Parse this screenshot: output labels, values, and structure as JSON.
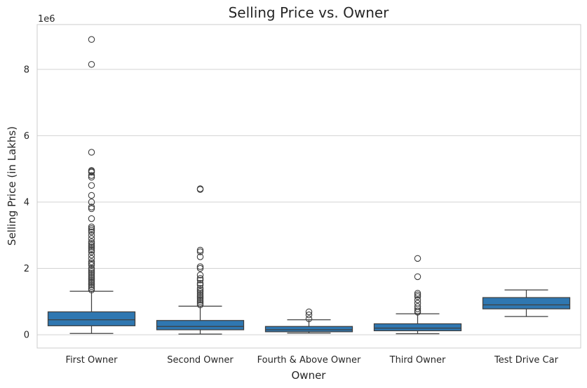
{
  "chart_data": {
    "type": "box",
    "title": "Selling Price vs. Owner",
    "xlabel": "Owner",
    "ylabel": "Selling Price (in Lakhs)",
    "y_scale_label": "1e6",
    "ylim": [
      -400000,
      9350000
    ],
    "yticks": [
      {
        "value": 0,
        "label": "0"
      },
      {
        "value": 2000000,
        "label": "2"
      },
      {
        "value": 4000000,
        "label": "4"
      },
      {
        "value": 6000000,
        "label": "6"
      },
      {
        "value": 8000000,
        "label": "8"
      }
    ],
    "grid": true,
    "colors": {
      "box_fill": "#2f77b1",
      "edge": "#3f3f3f",
      "grid": "#d3d3d3",
      "spine": "#cccccc"
    },
    "categories": [
      "First Owner",
      "Second Owner",
      "Fourth & Above Owner",
      "Third Owner",
      "Test Drive Car"
    ],
    "boxes": [
      {
        "category": "First Owner",
        "whisker_low": 40000,
        "q1": 270000,
        "median": 450000,
        "q3": 690000,
        "whisker_high": 1310000,
        "outliers": [
          8900000,
          8150000,
          5500000,
          4950000,
          4930000,
          4900000,
          4800000,
          4750000,
          4500000,
          4200000,
          4000000,
          3850000,
          3800000,
          3500000,
          3250000,
          3200000,
          3150000,
          3100000,
          3000000,
          2900000,
          2800000,
          2750000,
          2700000,
          2650000,
          2600000,
          2550000,
          2500000,
          2400000,
          2300000,
          2200000,
          2150000,
          2100000,
          2000000,
          1950000,
          1900000,
          1850000,
          1800000,
          1750000,
          1700000,
          1650000,
          1600000,
          1550000,
          1500000,
          1450000,
          1400000,
          1350000
        ]
      },
      {
        "category": "Second Owner",
        "whisker_low": 20000,
        "q1": 150000,
        "median": 250000,
        "q3": 430000,
        "whisker_high": 860000,
        "outliers": [
          4400000,
          4380000,
          2550000,
          2500000,
          2350000,
          2050000,
          2000000,
          1800000,
          1700000,
          1650000,
          1550000,
          1500000,
          1400000,
          1350000,
          1300000,
          1250000,
          1200000,
          1150000,
          1100000,
          1050000,
          1000000,
          950000,
          900000
        ]
      },
      {
        "category": "Fourth & Above Owner",
        "whisker_low": 50000,
        "q1": 90000,
        "median": 150000,
        "q3": 250000,
        "whisker_high": 450000,
        "outliers": [
          690000,
          600000,
          480000
        ]
      },
      {
        "category": "Third Owner",
        "whisker_low": 30000,
        "q1": 120000,
        "median": 200000,
        "q3": 330000,
        "whisker_high": 630000,
        "outliers": [
          2300000,
          1750000,
          1250000,
          1200000,
          1150000,
          1050000,
          950000,
          850000,
          780000,
          720000,
          680000
        ]
      },
      {
        "category": "Test Drive Car",
        "whisker_low": 550000,
        "q1": 780000,
        "median": 900000,
        "q3": 1120000,
        "whisker_high": 1350000,
        "outliers": []
      }
    ]
  }
}
